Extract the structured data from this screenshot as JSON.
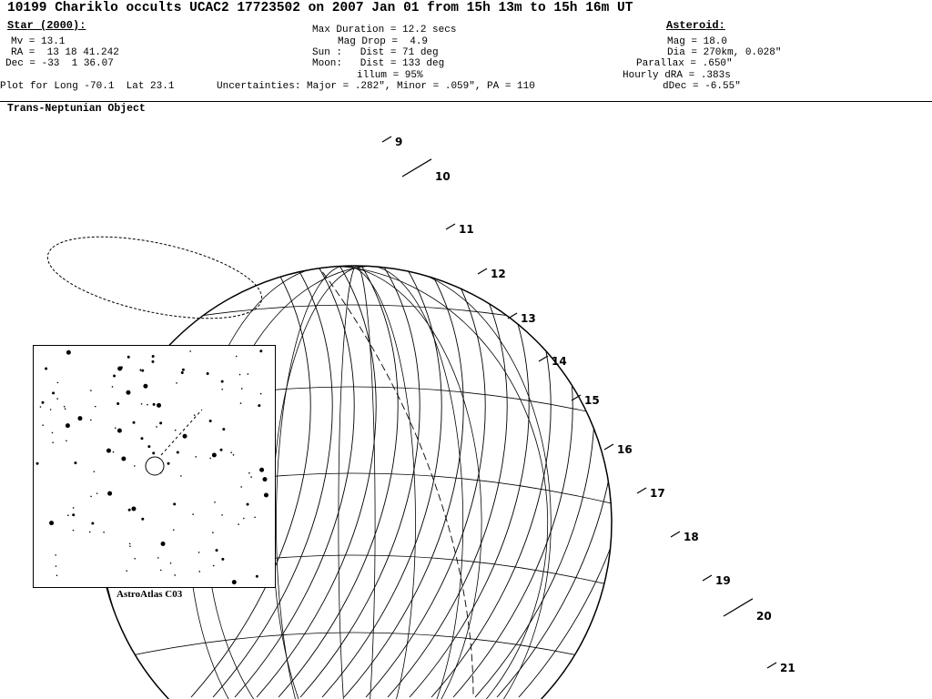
{
  "title": "10199 Chariklo occults UCAC2 17723502 on 2007 Jan 01 from 15h 13m to 15h 16m UT",
  "star": {
    "heading": "Star (2000):",
    "mv": "Mv = 13.1",
    "ra": "RA =  13 18 41.242",
    "dec": "Dec = -33  1 36.07"
  },
  "event": {
    "max_duration": "Max Duration = 12.2 secs",
    "mag_drop": "Mag Drop =  4.9",
    "sun": "Sun :   Dist = 71 deg",
    "moon": "Moon:   Dist = 133 deg",
    "illum": "illum = 95%"
  },
  "plot_for": "Plot for Long -70.1  Lat 23.1",
  "uncertainties": "Uncertainties: Major = .282\", Minor = .059\", PA = 110",
  "asteroid": {
    "heading": "Asteroid:",
    "mag": "Mag = 18.0",
    "dia": "Dia = 270km, 0.028\"",
    "parallax": "Parallax = .650\"",
    "hourly_dra": "Hourly dRA = .383s",
    "ddec": "dDec = -6.55\""
  },
  "object_type": "Trans-Neptunian Object",
  "time_marks": [
    "9",
    "10",
    "11",
    "12",
    "13",
    "14",
    "15",
    "16",
    "17",
    "18",
    "19",
    "20",
    "21"
  ],
  "inset_label": "AstroAtlas C03"
}
